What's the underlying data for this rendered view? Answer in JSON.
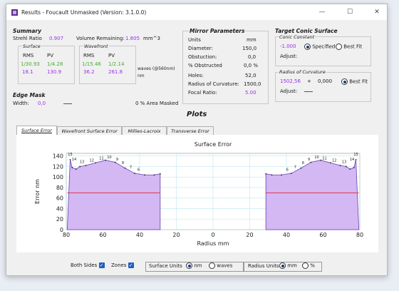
{
  "window": {
    "title": "Results - Foucault Unmasked (Version: 3.1.0.0)"
  },
  "summary": {
    "header": "Summary",
    "strehl_label": "Strehl Ratio",
    "strehl_value": "0.907",
    "vol_label": "Volume Remaining:",
    "vol_value": "1.805",
    "vol_unit": "mm^3",
    "surface_label": "Surface",
    "wavefront_label": "Wavefront",
    "rms_label": "RMS",
    "pv_label": "PV",
    "surf_rms_frac": "1/30.93",
    "surf_pv_frac": "1/4.28",
    "surf_rms_nm": "18.1",
    "surf_pv_nm": "130.9",
    "wave_rms_frac": "1/15.46",
    "wave_pv_frac": "1/2.14",
    "wave_rms_nm": "36.2",
    "wave_pv_nm": "261.8",
    "waves_unit": "waves (@560nm)",
    "nm_unit": "nm"
  },
  "edge_mask": {
    "header": "Edge Mask",
    "width_label": "Width:",
    "width_value": "0,0",
    "area_label": "0 % Area Masked"
  },
  "mirror": {
    "header": "Mirror Parameters",
    "units_label": "Units",
    "units_value": "mm",
    "diam_label": "Diameter:",
    "diam_value": "150,0",
    "obst_label": "Obstuction:",
    "obst_value": "0,0",
    "pobst_label": "% Obstructed",
    "pobst_value": "0,0 %",
    "holes_label": "Holes:",
    "holes_value": "52,0",
    "roc_label": "Radius of Curvature:",
    "roc_value": "1500,0",
    "ff_label": "Focal Ratio:",
    "ff_value": "5.00"
  },
  "target": {
    "header": "Target Conic Surface",
    "conic_label": "Conic Constant",
    "conic_value": "-1.000",
    "specified_label": "Specified",
    "bestfit_label": "Best Fit",
    "adjust_label": "Adjust:",
    "roc_label": "Radius of Curvature",
    "roc_value": "1502,56",
    "plus_label": "+",
    "roc_adjust": "0,000",
    "bestfit2_label": "Best Fit",
    "adjust2_label": "Adjust:"
  },
  "plots": {
    "header": "Plots",
    "tabs": [
      "Surface Error",
      "Wavefront Surface Error",
      "Millies-Lacroix",
      "Transverse Error"
    ]
  },
  "bottom": {
    "both_sides": "Both Sides",
    "zones": "Zones",
    "surface_units": "Surface Units",
    "nm": "nm",
    "waves": "waves",
    "radius_units": "Radius Units:",
    "mm": "mm",
    "percent": "%"
  },
  "chart_data": {
    "type": "area",
    "title": "Surface Error",
    "xlabel": "Radius mm",
    "ylabel": "Error nm",
    "xlim": [
      -75,
      75
    ],
    "ylim": [
      0,
      145
    ],
    "xticks": [
      "80",
      "60",
      "40",
      "20",
      "0",
      "20",
      "40",
      "60",
      "80"
    ],
    "yticks": [
      0,
      20,
      40,
      60,
      80,
      100,
      120,
      140
    ],
    "series": [
      {
        "x": [
          -74.5,
          -73,
          -72,
          -70,
          -68,
          -65,
          -60,
          -55,
          -50,
          -45,
          -40,
          -35,
          -30,
          -27
        ],
        "y": [
          0,
          133,
          118,
          115,
          120,
          122,
          127,
          132,
          128,
          117,
          107,
          104,
          104,
          106
        ]
      },
      {
        "x": [
          27,
          30,
          35,
          40,
          45,
          50,
          55,
          60,
          65,
          68,
          70,
          72,
          73,
          74.5
        ],
        "y": [
          106,
          104,
          104,
          107,
          117,
          128,
          132,
          127,
          122,
          120,
          115,
          118,
          133,
          0
        ]
      }
    ],
    "reference_line": 70,
    "zone_labels": [
      {
        "x": -73,
        "y": 138,
        "t": "15"
      },
      {
        "x": -71,
        "y": 129,
        "t": "14"
      },
      {
        "x": -67,
        "y": 124,
        "t": "13"
      },
      {
        "x": -62,
        "y": 127,
        "t": "12"
      },
      {
        "x": -57,
        "y": 131,
        "t": "11"
      },
      {
        "x": -53,
        "y": 133,
        "t": "10"
      },
      {
        "x": -49,
        "y": 129,
        "t": "9"
      },
      {
        "x": -46,
        "y": 122,
        "t": "8"
      },
      {
        "x": -42,
        "y": 114,
        "t": "7"
      },
      {
        "x": -38,
        "y": 109,
        "t": "6"
      },
      {
        "x": 38,
        "y": 109,
        "t": "6"
      },
      {
        "x": 42,
        "y": 114,
        "t": "7"
      },
      {
        "x": 46,
        "y": 122,
        "t": "8"
      },
      {
        "x": 49,
        "y": 129,
        "t": "9"
      },
      {
        "x": 53,
        "y": 133,
        "t": "10"
      },
      {
        "x": 57,
        "y": 131,
        "t": "11"
      },
      {
        "x": 62,
        "y": 127,
        "t": "12"
      },
      {
        "x": 67,
        "y": 124,
        "t": "13"
      },
      {
        "x": 71,
        "y": 129,
        "t": "14"
      },
      {
        "x": 73,
        "y": 138,
        "t": "15"
      }
    ],
    "colors": {
      "fill": "#d3b8f3",
      "line": "#6a3fb0",
      "ref": "#e0344a",
      "grid": "#bfe6f0"
    }
  }
}
